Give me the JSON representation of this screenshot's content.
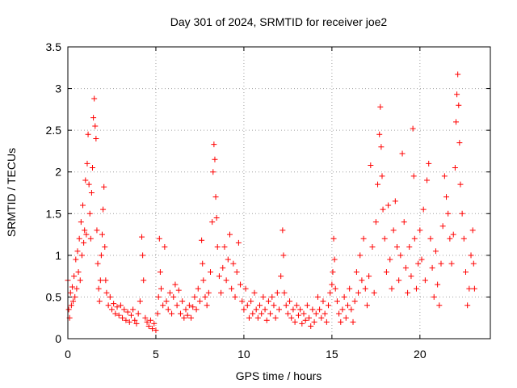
{
  "chart_data": {
    "type": "scatter",
    "title": "Day 301 of 2024, SRMTID for receiver joe2",
    "xlabel": "GPS time / hours",
    "ylabel": "SRMTID / TECUs",
    "xlim": [
      0,
      24
    ],
    "ylim": [
      0,
      3.5
    ],
    "xticks": [
      {
        "value": 0,
        "label": "0"
      },
      {
        "value": 5,
        "label": "5"
      },
      {
        "value": 10,
        "label": "10"
      },
      {
        "value": 15,
        "label": "15"
      },
      {
        "value": 20,
        "label": "20"
      }
    ],
    "yticks": [
      {
        "value": 0,
        "label": "0"
      },
      {
        "value": 0.5,
        "label": "0.5"
      },
      {
        "value": 1,
        "label": "1"
      },
      {
        "value": 1.5,
        "label": "1.5"
      },
      {
        "value": 2,
        "label": "2"
      },
      {
        "value": 2.5,
        "label": "2.5"
      },
      {
        "value": 3,
        "label": "3"
      },
      {
        "value": 3.5,
        "label": "3.5"
      }
    ],
    "grid": true,
    "marker": "+",
    "color": "#ff0000",
    "series": [
      {
        "name": "SRMTID",
        "points": [
          [
            0.0,
            0.7
          ],
          [
            0.05,
            0.35
          ],
          [
            0.1,
            0.25
          ],
          [
            0.15,
            0.55
          ],
          [
            0.2,
            0.4
          ],
          [
            0.25,
            0.62
          ],
          [
            0.3,
            0.45
          ],
          [
            0.35,
            0.75
          ],
          [
            0.4,
            0.5
          ],
          [
            0.45,
            0.95
          ],
          [
            0.5,
            0.6
          ],
          [
            0.55,
            1.05
          ],
          [
            0.6,
            0.8
          ],
          [
            0.65,
            1.2
          ],
          [
            0.7,
            0.7
          ],
          [
            0.75,
            1.4
          ],
          [
            0.8,
            1.0
          ],
          [
            0.85,
            1.6
          ],
          [
            0.9,
            1.15
          ],
          [
            0.95,
            1.3
          ],
          [
            1.0,
            1.9
          ],
          [
            1.05,
            1.25
          ],
          [
            1.1,
            2.1
          ],
          [
            1.15,
            2.45
          ],
          [
            1.2,
            1.85
          ],
          [
            1.25,
            1.5
          ],
          [
            1.3,
            1.2
          ],
          [
            1.35,
            1.75
          ],
          [
            1.4,
            2.05
          ],
          [
            1.45,
            2.65
          ],
          [
            1.5,
            2.88
          ],
          [
            1.55,
            2.55
          ],
          [
            1.6,
            2.4
          ],
          [
            1.65,
            1.3
          ],
          [
            1.7,
            0.9
          ],
          [
            1.75,
            0.6
          ],
          [
            1.8,
            0.45
          ],
          [
            1.85,
            0.7
          ],
          [
            1.9,
            1.0
          ],
          [
            1.95,
            1.25
          ],
          [
            2.0,
            1.55
          ],
          [
            2.05,
            1.82
          ],
          [
            2.1,
            1.1
          ],
          [
            2.15,
            0.7
          ],
          [
            2.2,
            0.55
          ],
          [
            2.3,
            0.4
          ],
          [
            2.4,
            0.5
          ],
          [
            2.5,
            0.35
          ],
          [
            2.6,
            0.42
          ],
          [
            2.7,
            0.3
          ],
          [
            2.8,
            0.38
          ],
          [
            2.9,
            0.28
          ],
          [
            3.0,
            0.4
          ],
          [
            3.1,
            0.25
          ],
          [
            3.2,
            0.35
          ],
          [
            3.3,
            0.22
          ],
          [
            3.4,
            0.32
          ],
          [
            3.5,
            0.2
          ],
          [
            3.6,
            0.28
          ],
          [
            3.7,
            0.35
          ],
          [
            3.8,
            0.22
          ],
          [
            3.9,
            0.18
          ],
          [
            4.0,
            0.3
          ],
          [
            4.1,
            0.45
          ],
          [
            4.2,
            1.22
          ],
          [
            4.25,
            1.0
          ],
          [
            4.3,
            0.7
          ],
          [
            4.4,
            0.25
          ],
          [
            4.5,
            0.2
          ],
          [
            4.6,
            0.15
          ],
          [
            4.7,
            0.22
          ],
          [
            4.8,
            0.12
          ],
          [
            4.9,
            0.18
          ],
          [
            5.0,
            0.1
          ],
          [
            5.1,
            0.3
          ],
          [
            5.15,
            0.5
          ],
          [
            5.2,
            1.2
          ],
          [
            5.25,
            0.8
          ],
          [
            5.3,
            0.6
          ],
          [
            5.4,
            0.4
          ],
          [
            5.5,
            1.1
          ],
          [
            5.6,
            0.45
          ],
          [
            5.7,
            0.35
          ],
          [
            5.8,
            0.55
          ],
          [
            5.9,
            0.3
          ],
          [
            6.0,
            0.5
          ],
          [
            6.1,
            0.65
          ],
          [
            6.2,
            0.4
          ],
          [
            6.3,
            0.58
          ],
          [
            6.4,
            0.3
          ],
          [
            6.5,
            0.45
          ],
          [
            6.6,
            0.25
          ],
          [
            6.7,
            0.35
          ],
          [
            6.8,
            0.28
          ],
          [
            6.9,
            0.4
          ],
          [
            7.0,
            0.25
          ],
          [
            7.1,
            0.38
          ],
          [
            7.2,
            0.5
          ],
          [
            7.3,
            0.35
          ],
          [
            7.4,
            0.6
          ],
          [
            7.5,
            0.45
          ],
          [
            7.6,
            1.18
          ],
          [
            7.65,
            0.9
          ],
          [
            7.7,
            0.7
          ],
          [
            7.8,
            0.5
          ],
          [
            7.9,
            0.4
          ],
          [
            8.0,
            0.55
          ],
          [
            8.1,
            0.8
          ],
          [
            8.2,
            1.4
          ],
          [
            8.25,
            2.0
          ],
          [
            8.3,
            2.33
          ],
          [
            8.35,
            2.15
          ],
          [
            8.4,
            1.7
          ],
          [
            8.45,
            1.45
          ],
          [
            8.5,
            1.1
          ],
          [
            8.6,
            0.75
          ],
          [
            8.7,
            0.55
          ],
          [
            8.8,
            0.85
          ],
          [
            8.9,
            1.1
          ],
          [
            9.0,
            0.7
          ],
          [
            9.1,
            0.95
          ],
          [
            9.2,
            1.25
          ],
          [
            9.3,
            0.6
          ],
          [
            9.4,
            0.9
          ],
          [
            9.5,
            0.5
          ],
          [
            9.6,
            0.8
          ],
          [
            9.7,
            1.15
          ],
          [
            9.8,
            0.65
          ],
          [
            9.9,
            0.45
          ],
          [
            10.0,
            0.35
          ],
          [
            10.1,
            0.6
          ],
          [
            10.2,
            0.4
          ],
          [
            10.3,
            0.25
          ],
          [
            10.4,
            0.45
          ],
          [
            10.5,
            0.3
          ],
          [
            10.6,
            0.55
          ],
          [
            10.7,
            0.35
          ],
          [
            10.8,
            0.25
          ],
          [
            10.9,
            0.4
          ],
          [
            11.0,
            0.3
          ],
          [
            11.1,
            0.5
          ],
          [
            11.2,
            0.35
          ],
          [
            11.3,
            0.22
          ],
          [
            11.4,
            0.45
          ],
          [
            11.5,
            0.3
          ],
          [
            11.6,
            0.5
          ],
          [
            11.7,
            0.4
          ],
          [
            11.8,
            0.25
          ],
          [
            11.9,
            0.55
          ],
          [
            12.0,
            0.35
          ],
          [
            12.1,
            0.75
          ],
          [
            12.2,
            1.3
          ],
          [
            12.25,
            1.0
          ],
          [
            12.3,
            0.55
          ],
          [
            12.4,
            0.4
          ],
          [
            12.5,
            0.3
          ],
          [
            12.6,
            0.45
          ],
          [
            12.7,
            0.25
          ],
          [
            12.8,
            0.35
          ],
          [
            12.9,
            0.2
          ],
          [
            13.0,
            0.4
          ],
          [
            13.1,
            0.28
          ],
          [
            13.2,
            0.35
          ],
          [
            13.3,
            0.18
          ],
          [
            13.4,
            0.3
          ],
          [
            13.5,
            0.22
          ],
          [
            13.6,
            0.4
          ],
          [
            13.7,
            0.25
          ],
          [
            13.8,
            0.15
          ],
          [
            13.9,
            0.35
          ],
          [
            14.0,
            0.2
          ],
          [
            14.1,
            0.3
          ],
          [
            14.2,
            0.5
          ],
          [
            14.3,
            0.35
          ],
          [
            14.4,
            0.25
          ],
          [
            14.5,
            0.45
          ],
          [
            14.6,
            0.3
          ],
          [
            14.7,
            0.2
          ],
          [
            14.8,
            0.4
          ],
          [
            14.9,
            0.55
          ],
          [
            15.0,
            0.65
          ],
          [
            15.05,
            0.8
          ],
          [
            15.1,
            1.2
          ],
          [
            15.15,
            0.95
          ],
          [
            15.2,
            0.6
          ],
          [
            15.3,
            0.45
          ],
          [
            15.4,
            0.3
          ],
          [
            15.5,
            0.2
          ],
          [
            15.6,
            0.35
          ],
          [
            15.7,
            0.5
          ],
          [
            15.8,
            0.25
          ],
          [
            15.9,
            0.4
          ],
          [
            16.0,
            0.6
          ],
          [
            16.1,
            0.35
          ],
          [
            16.2,
            0.2
          ],
          [
            16.3,
            0.45
          ],
          [
            16.4,
            0.8
          ],
          [
            16.5,
            0.55
          ],
          [
            16.6,
            1.0
          ],
          [
            16.7,
            0.7
          ],
          [
            16.8,
            1.2
          ],
          [
            16.9,
            0.6
          ],
          [
            17.0,
            0.4
          ],
          [
            17.1,
            0.75
          ],
          [
            17.2,
            2.08
          ],
          [
            17.3,
            1.1
          ],
          [
            17.4,
            0.55
          ],
          [
            17.5,
            1.4
          ],
          [
            17.6,
            1.85
          ],
          [
            17.7,
            2.45
          ],
          [
            17.75,
            2.78
          ],
          [
            17.8,
            2.3
          ],
          [
            17.85,
            1.95
          ],
          [
            17.9,
            1.55
          ],
          [
            18.0,
            1.2
          ],
          [
            18.1,
            0.8
          ],
          [
            18.2,
            1.6
          ],
          [
            18.3,
            0.95
          ],
          [
            18.4,
            0.6
          ],
          [
            18.5,
            1.3
          ],
          [
            18.6,
            1.65
          ],
          [
            18.7,
            1.1
          ],
          [
            18.8,
            0.7
          ],
          [
            18.9,
            1.0
          ],
          [
            19.0,
            2.22
          ],
          [
            19.1,
            1.4
          ],
          [
            19.2,
            0.85
          ],
          [
            19.3,
            0.55
          ],
          [
            19.4,
            1.1
          ],
          [
            19.5,
            0.75
          ],
          [
            19.6,
            2.52
          ],
          [
            19.65,
            1.95
          ],
          [
            19.7,
            1.2
          ],
          [
            19.8,
            0.6
          ],
          [
            19.9,
            0.9
          ],
          [
            20.0,
            1.3
          ],
          [
            20.1,
            0.95
          ],
          [
            20.2,
            1.55
          ],
          [
            20.3,
            0.7
          ],
          [
            20.4,
            1.9
          ],
          [
            20.5,
            2.1
          ],
          [
            20.6,
            1.2
          ],
          [
            20.7,
            0.85
          ],
          [
            20.8,
            0.5
          ],
          [
            20.9,
            1.05
          ],
          [
            21.0,
            0.65
          ],
          [
            21.1,
            0.4
          ],
          [
            21.2,
            0.9
          ],
          [
            21.3,
            1.35
          ],
          [
            21.4,
            1.95
          ],
          [
            21.5,
            1.7
          ],
          [
            21.6,
            1.5
          ],
          [
            21.7,
            1.2
          ],
          [
            21.8,
            0.9
          ],
          [
            21.9,
            1.25
          ],
          [
            22.0,
            2.05
          ],
          [
            22.05,
            2.6
          ],
          [
            22.1,
            2.93
          ],
          [
            22.15,
            3.17
          ],
          [
            22.2,
            2.8
          ],
          [
            22.25,
            2.35
          ],
          [
            22.3,
            1.85
          ],
          [
            22.4,
            1.5
          ],
          [
            22.5,
            1.2
          ],
          [
            22.6,
            0.8
          ],
          [
            22.7,
            0.4
          ],
          [
            22.8,
            0.6
          ],
          [
            22.9,
            1.0
          ],
          [
            23.0,
            1.3
          ],
          [
            23.05,
            0.9
          ],
          [
            23.1,
            0.6
          ]
        ]
      }
    ]
  }
}
